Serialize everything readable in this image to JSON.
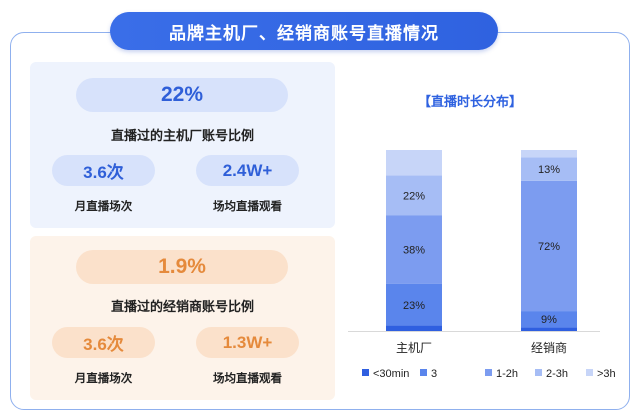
{
  "header": {
    "title": "品牌主机厂、经销商账号直播情况"
  },
  "oem_panel": {
    "main_value": "22%",
    "main_label": "直播过的主机厂账号比例",
    "stats": [
      {
        "value": "3.6次",
        "label": "月直播场次"
      },
      {
        "value": "2.4W+",
        "label": "场均直播观看"
      }
    ]
  },
  "dealer_panel": {
    "main_value": "1.9%",
    "main_label": "直播过的经销商账号比例",
    "stats": [
      {
        "value": "3.6次",
        "label": "月直播场次"
      },
      {
        "value": "1.3W+",
        "label": "场均直播观看"
      }
    ]
  },
  "colors": {
    "accent": "#2f62e0",
    "blue_panel": "#eef3fd",
    "orange_panel": "#fdf3ea",
    "orange_text": "#e58a3c"
  },
  "chart_data": {
    "type": "bar",
    "stacked": true,
    "title": "【直播时长分布】",
    "categories": [
      "主机厂",
      "经销商"
    ],
    "ylim": [
      0,
      100
    ],
    "series": [
      {
        "name": "<30min",
        "color": "#2f5fe0",
        "values": [
          3,
          2
        ]
      },
      {
        "name": "3",
        "color": "#5a85ec",
        "values": [
          23,
          9
        ]
      },
      {
        "name": "1-2h",
        "color": "#7c9cf0",
        "values": [
          38,
          72
        ]
      },
      {
        "name": "2-3h",
        "color": "#a6bdf5",
        "values": [
          22,
          13
        ]
      },
      {
        "name": ">3h",
        "color": "#c7d5f8",
        "values": [
          14,
          4
        ]
      }
    ],
    "data_labels": [
      [
        "",
        "23%",
        "38%",
        "22%",
        ""
      ],
      [
        "",
        "9%",
        "72%",
        "13%",
        ""
      ]
    ],
    "legend_position": "bottom",
    "grid": false
  }
}
